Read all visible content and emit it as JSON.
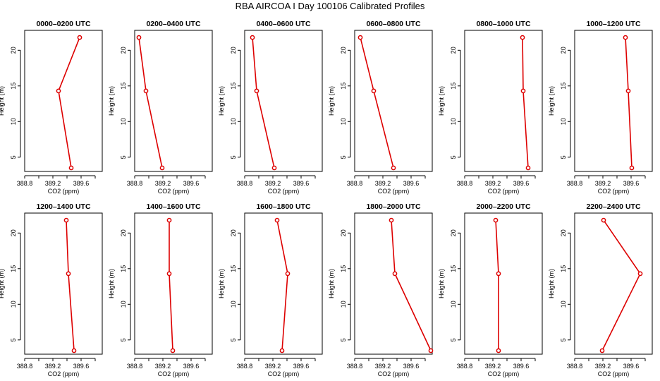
{
  "figure_title": "RBA AIRCOA  I  Day 100106  Calibrated Profiles",
  "colors": {
    "series": "#dd0000",
    "marker_fill": "#ffffff",
    "axes": "#000000"
  },
  "chart_data": [
    {
      "type": "line",
      "title": "0000–0200 UTC",
      "xlabel": "CO2 (ppm)",
      "ylabel": "Height (m)",
      "xlim": [
        388.8,
        389.9
      ],
      "ylim": [
        3,
        22.8
      ],
      "x_ticks": [
        "388.8",
        "389.2",
        "389.6"
      ],
      "y_ticks": [
        "5",
        "10",
        "15",
        "20"
      ],
      "x": [
        389.58,
        389.28,
        389.46
      ],
      "y": [
        21.8,
        14.3,
        3.5
      ]
    },
    {
      "type": "line",
      "title": "0200–0400 UTC",
      "xlabel": "CO2 (ppm)",
      "ylabel": "Height (m)",
      "xlim": [
        388.8,
        389.9
      ],
      "ylim": [
        3,
        22.8
      ],
      "x_ticks": [
        "388.8",
        "389.2",
        "389.6"
      ],
      "y_ticks": [
        "5",
        "10",
        "15",
        "20"
      ],
      "x": [
        388.86,
        388.96,
        389.19
      ],
      "y": [
        21.8,
        14.3,
        3.5
      ]
    },
    {
      "type": "line",
      "title": "0400–0600 UTC",
      "xlabel": "CO2 (ppm)",
      "ylabel": "Height (m)",
      "xlim": [
        388.8,
        389.9
      ],
      "ylim": [
        3,
        22.8
      ],
      "x_ticks": [
        "388.8",
        "389.2",
        "389.6"
      ],
      "y_ticks": [
        "5",
        "10",
        "15",
        "20"
      ],
      "x": [
        388.91,
        388.97,
        389.22
      ],
      "y": [
        21.8,
        14.3,
        3.5
      ]
    },
    {
      "type": "line",
      "title": "0600–0800 UTC",
      "xlabel": "CO2 (ppm)",
      "ylabel": "Height (m)",
      "xlim": [
        388.8,
        389.9
      ],
      "ylim": [
        3,
        22.8
      ],
      "x_ticks": [
        "388.8",
        "389.2",
        "389.6"
      ],
      "y_ticks": [
        "5",
        "10",
        "15",
        "20"
      ],
      "x": [
        388.88,
        389.07,
        389.35
      ],
      "y": [
        21.8,
        14.3,
        3.5
      ]
    },
    {
      "type": "line",
      "title": "0800–1000 UTC",
      "xlabel": "CO2 (ppm)",
      "ylabel": "Height (m)",
      "xlim": [
        388.8,
        389.9
      ],
      "ylim": [
        3,
        22.8
      ],
      "x_ticks": [
        "388.8",
        "389.2",
        "389.6"
      ],
      "y_ticks": [
        "5",
        "10",
        "15",
        "20"
      ],
      "x": [
        389.62,
        389.63,
        389.7
      ],
      "y": [
        21.8,
        14.3,
        3.5
      ]
    },
    {
      "type": "line",
      "title": "1000–1200 UTC",
      "xlabel": "CO2 (ppm)",
      "ylabel": "Height (m)",
      "xlim": [
        388.8,
        389.9
      ],
      "ylim": [
        3,
        22.8
      ],
      "x_ticks": [
        "388.8",
        "389.2",
        "389.6"
      ],
      "y_ticks": [
        "5",
        "10",
        "15",
        "20"
      ],
      "x": [
        389.52,
        389.56,
        389.61
      ],
      "y": [
        21.8,
        14.3,
        3.5
      ]
    },
    {
      "type": "line",
      "title": "1200–1400 UTC",
      "xlabel": "CO2 (ppm)",
      "ylabel": "Height (m)",
      "xlim": [
        388.8,
        389.9
      ],
      "ylim": [
        3,
        22.8
      ],
      "x_ticks": [
        "388.8",
        "389.2",
        "389.6"
      ],
      "y_ticks": [
        "5",
        "10",
        "15",
        "20"
      ],
      "x": [
        389.39,
        389.42,
        389.5
      ],
      "y": [
        21.8,
        14.3,
        3.5
      ]
    },
    {
      "type": "line",
      "title": "1400–1600 UTC",
      "xlabel": "CO2 (ppm)",
      "ylabel": "Height (m)",
      "xlim": [
        388.8,
        389.9
      ],
      "ylim": [
        3,
        22.8
      ],
      "x_ticks": [
        "388.8",
        "389.2",
        "389.6"
      ],
      "y_ticks": [
        "5",
        "10",
        "15",
        "20"
      ],
      "x": [
        389.29,
        389.29,
        389.34
      ],
      "y": [
        21.8,
        14.3,
        3.5
      ]
    },
    {
      "type": "line",
      "title": "1600–1800 UTC",
      "xlabel": "CO2 (ppm)",
      "ylabel": "Height (m)",
      "xlim": [
        388.8,
        389.9
      ],
      "ylim": [
        3,
        22.8
      ],
      "x_ticks": [
        "388.8",
        "389.2",
        "389.6"
      ],
      "y_ticks": [
        "5",
        "10",
        "15",
        "20"
      ],
      "x": [
        389.26,
        389.41,
        389.33
      ],
      "y": [
        21.8,
        14.3,
        3.5
      ]
    },
    {
      "type": "line",
      "title": "1800–2000 UTC",
      "xlabel": "CO2 (ppm)",
      "ylabel": "Height (m)",
      "xlim": [
        388.8,
        389.9
      ],
      "ylim": [
        3,
        22.8
      ],
      "x_ticks": [
        "388.8",
        "389.2",
        "389.6"
      ],
      "y_ticks": [
        "5",
        "10",
        "15",
        "20"
      ],
      "x": [
        389.32,
        389.37,
        389.88
      ],
      "y": [
        21.8,
        14.3,
        3.5
      ]
    },
    {
      "type": "line",
      "title": "2000–2200 UTC",
      "xlabel": "CO2 (ppm)",
      "ylabel": "Height (m)",
      "xlim": [
        388.8,
        389.9
      ],
      "ylim": [
        3,
        22.8
      ],
      "x_ticks": [
        "388.8",
        "389.2",
        "389.6"
      ],
      "y_ticks": [
        "5",
        "10",
        "15",
        "20"
      ],
      "x": [
        389.24,
        389.28,
        389.28
      ],
      "y": [
        21.8,
        14.3,
        3.5
      ]
    },
    {
      "type": "line",
      "title": "2200–2400 UTC",
      "xlabel": "CO2 (ppm)",
      "ylabel": "Height (m)",
      "xlim": [
        388.8,
        389.9
      ],
      "ylim": [
        3,
        22.8
      ],
      "x_ticks": [
        "388.8",
        "389.2",
        "389.6"
      ],
      "y_ticks": [
        "5",
        "10",
        "15",
        "20"
      ],
      "x": [
        389.21,
        389.73,
        389.19
      ],
      "y": [
        21.8,
        14.3,
        3.5
      ]
    }
  ]
}
